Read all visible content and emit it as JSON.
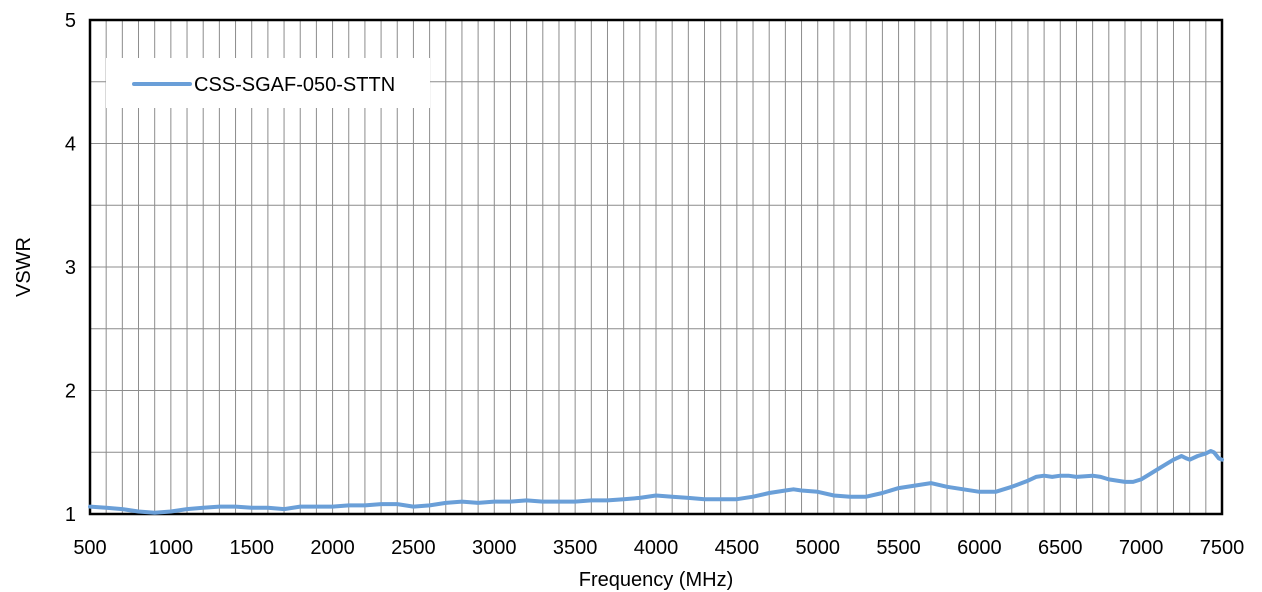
{
  "chart_data": {
    "type": "line",
    "title": "",
    "xlabel": "Frequency (MHz)",
    "ylabel": "VSWR",
    "xlim": [
      500,
      7500
    ],
    "ylim": [
      1,
      5
    ],
    "x_major_ticks": [
      500,
      1000,
      1500,
      2000,
      2500,
      3000,
      3500,
      4000,
      4500,
      5000,
      5500,
      6000,
      6500,
      7000,
      7500
    ],
    "y_major_ticks": [
      1,
      2,
      3,
      4,
      5
    ],
    "x_minor_step": 100,
    "y_minor_step": 0.5,
    "grid": true,
    "legend_position": "top-left",
    "colors": {
      "series": "#6a9fd8",
      "grid": "#8c8c8c",
      "axes": "#000000"
    },
    "series": [
      {
        "name": "CSS-SGAF-050-STTN",
        "x": [
          500,
          600,
          700,
          800,
          900,
          1000,
          1100,
          1200,
          1300,
          1400,
          1500,
          1600,
          1700,
          1800,
          1900,
          2000,
          2100,
          2200,
          2300,
          2400,
          2500,
          2600,
          2700,
          2800,
          2900,
          3000,
          3100,
          3200,
          3300,
          3400,
          3500,
          3600,
          3700,
          3800,
          3900,
          4000,
          4100,
          4200,
          4300,
          4400,
          4500,
          4600,
          4700,
          4800,
          4850,
          4900,
          5000,
          5100,
          5200,
          5300,
          5400,
          5500,
          5600,
          5700,
          5800,
          5900,
          6000,
          6100,
          6200,
          6300,
          6350,
          6400,
          6450,
          6500,
          6550,
          6600,
          6700,
          6750,
          6800,
          6900,
          6950,
          7000,
          7050,
          7100,
          7150,
          7200,
          7250,
          7280,
          7300,
          7350,
          7400,
          7430,
          7450,
          7480,
          7500
        ],
        "values": [
          1.06,
          1.05,
          1.04,
          1.02,
          1.01,
          1.02,
          1.04,
          1.05,
          1.06,
          1.06,
          1.05,
          1.05,
          1.04,
          1.06,
          1.06,
          1.06,
          1.07,
          1.07,
          1.08,
          1.08,
          1.06,
          1.07,
          1.09,
          1.1,
          1.09,
          1.1,
          1.1,
          1.11,
          1.1,
          1.1,
          1.1,
          1.11,
          1.11,
          1.12,
          1.13,
          1.15,
          1.14,
          1.13,
          1.12,
          1.12,
          1.12,
          1.14,
          1.17,
          1.19,
          1.2,
          1.19,
          1.18,
          1.15,
          1.14,
          1.14,
          1.17,
          1.21,
          1.23,
          1.25,
          1.22,
          1.2,
          1.18,
          1.18,
          1.22,
          1.27,
          1.3,
          1.31,
          1.3,
          1.31,
          1.31,
          1.3,
          1.31,
          1.3,
          1.28,
          1.26,
          1.26,
          1.28,
          1.32,
          1.36,
          1.4,
          1.44,
          1.47,
          1.45,
          1.44,
          1.47,
          1.49,
          1.51,
          1.5,
          1.45,
          1.44
        ]
      }
    ]
  }
}
